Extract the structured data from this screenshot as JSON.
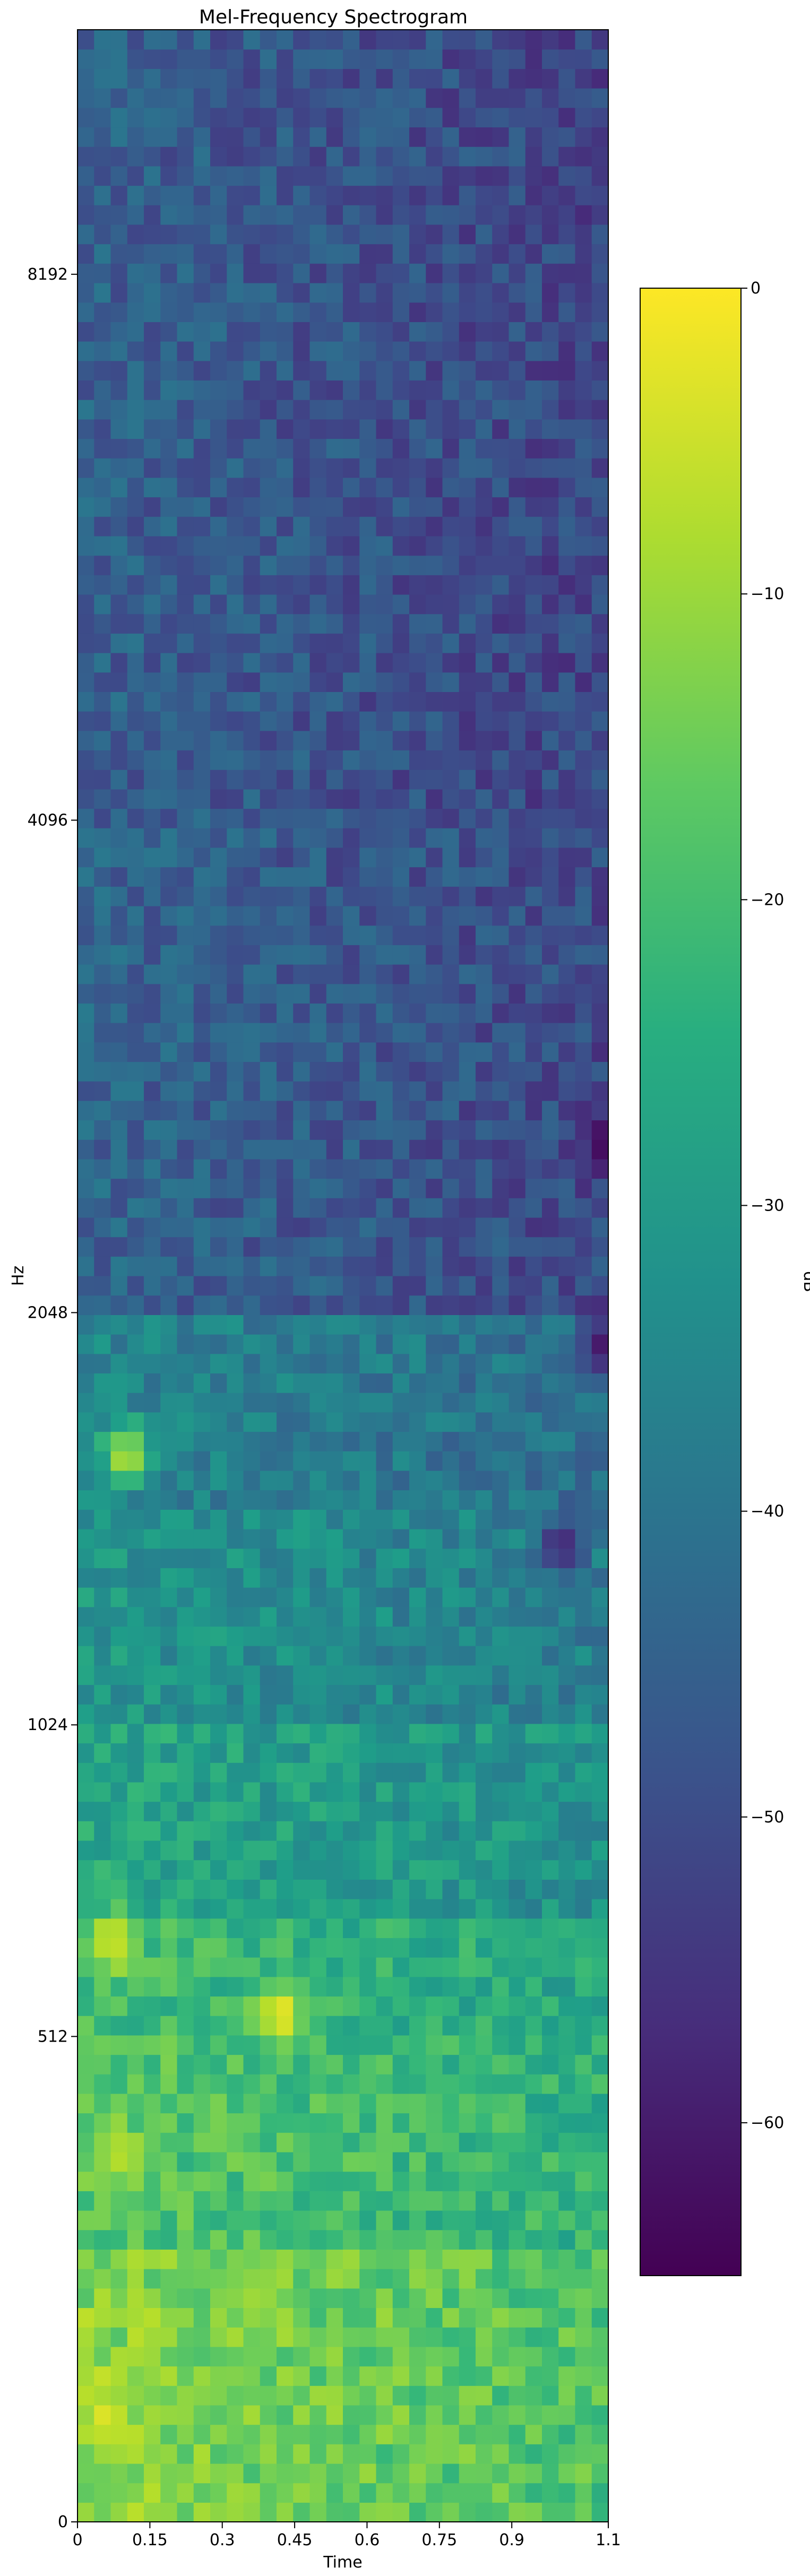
{
  "chart_data": {
    "type": "heatmap",
    "title": "Mel-Frequency Spectrogram",
    "xlabel": "Time",
    "ylabel": "Hz",
    "x_ticks": [
      0,
      0.15,
      0.3,
      0.45,
      0.6,
      0.75,
      0.9,
      1.1
    ],
    "x_tick_labels": [
      "0",
      "0.15",
      "0.3",
      "0.45",
      "0.6",
      "0.75",
      "0.9",
      "1.1"
    ],
    "xlim": [
      0,
      1.1
    ],
    "y_ticks": [
      0,
      512,
      1024,
      2048,
      4096,
      8192
    ],
    "y_tick_labels": [
      "0",
      "512",
      "1024",
      "2048",
      "4096",
      "8192"
    ],
    "y_scale": "mel",
    "ylim": [
      0,
      11025
    ],
    "n_time_frames": 32,
    "n_mel_bins": 128,
    "value_unit": "dB",
    "value_range": [
      -65,
      0
    ],
    "colormap": "viridis",
    "colorbar": {
      "label": "dB",
      "ticks": [
        0,
        -10,
        -20,
        -30,
        -40,
        -50,
        -60
      ],
      "tick_labels": [
        "0",
        "−10",
        "−20",
        "−30",
        "−40",
        "−50",
        "−60"
      ],
      "min": -65,
      "max": 0
    },
    "band_levels_db": [
      {
        "hz_from": 0,
        "hz_to": 250,
        "db": -12
      },
      {
        "hz_from": 250,
        "hz_to": 512,
        "db": -17
      },
      {
        "hz_from": 512,
        "hz_to": 700,
        "db": -20
      },
      {
        "hz_from": 700,
        "hz_to": 1024,
        "db": -26
      },
      {
        "hz_from": 1024,
        "hz_to": 1500,
        "db": -31
      },
      {
        "hz_from": 1500,
        "hz_to": 2048,
        "db": -35
      },
      {
        "hz_from": 2048,
        "hz_to": 4096,
        "db": -44
      },
      {
        "hz_from": 4096,
        "hz_to": 11025,
        "db": -45
      }
    ],
    "hotspots": [
      {
        "time": 0.42,
        "hz": 545,
        "db": -1
      },
      {
        "time": 0.07,
        "hz": 650,
        "db": -4
      },
      {
        "time": 0.1,
        "hz": 1640,
        "db": -7
      },
      {
        "time": 0.06,
        "hz": 90,
        "db": -3
      },
      {
        "time": 0.38,
        "hz": 210,
        "db": -9
      },
      {
        "time": 0.08,
        "hz": 360,
        "db": -7
      }
    ],
    "dark_spots": [
      {
        "time": 1.1,
        "hz": 2650,
        "db": -65
      },
      {
        "time": 1.1,
        "hz": 1950,
        "db": -63
      },
      {
        "time": 1.0,
        "hz": 1410,
        "db": -58
      }
    ]
  }
}
